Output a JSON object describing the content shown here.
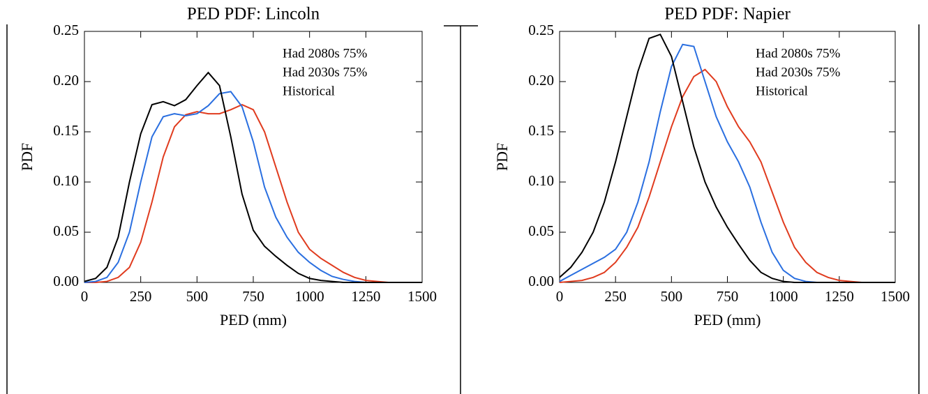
{
  "chart_data": [
    {
      "type": "line",
      "title": "PED PDF: Lincoln",
      "xlabel": "PED (mm)",
      "ylabel": "PDF",
      "x": [
        0,
        50,
        100,
        150,
        200,
        250,
        300,
        350,
        400,
        450,
        500,
        550,
        600,
        650,
        700,
        750,
        800,
        850,
        900,
        950,
        1000,
        1050,
        1100,
        1150,
        1200,
        1250,
        1300,
        1350,
        1400,
        1450,
        1500
      ],
      "xlim": [
        0,
        1500
      ],
      "xticks": [
        0,
        250,
        500,
        750,
        1000,
        1250,
        1500
      ],
      "ylim": [
        0,
        0.25
      ],
      "yticks": [
        {
          "value": 0,
          "label": "0.00"
        },
        {
          "value": 0.05,
          "label": "0.05"
        },
        {
          "value": 0.1,
          "label": "0.10"
        },
        {
          "value": 0.15,
          "label": "0.15"
        },
        {
          "value": 0.2,
          "label": "0.20"
        },
        {
          "value": 0.25,
          "label": "0.25"
        }
      ],
      "legend": "upper right",
      "series": [
        {
          "name": "Had 2080s 75%",
          "color": "#e03b1e",
          "values": [
            0,
            0,
            0.001,
            0.005,
            0.015,
            0.04,
            0.08,
            0.125,
            0.155,
            0.167,
            0.17,
            0.168,
            0.168,
            0.172,
            0.177,
            0.172,
            0.15,
            0.115,
            0.08,
            0.05,
            0.033,
            0.024,
            0.017,
            0.01,
            0.005,
            0.002,
            0.001,
            0,
            0,
            0,
            0
          ]
        },
        {
          "name": "Had 2030s 75%",
          "color": "#2a6fe0",
          "values": [
            0,
            0.001,
            0.005,
            0.02,
            0.05,
            0.1,
            0.145,
            0.165,
            0.168,
            0.166,
            0.168,
            0.176,
            0.188,
            0.19,
            0.175,
            0.14,
            0.095,
            0.065,
            0.045,
            0.03,
            0.02,
            0.012,
            0.006,
            0.003,
            0.001,
            0,
            0,
            0,
            0,
            0,
            0
          ]
        },
        {
          "name": "Historical",
          "color": "#000000",
          "values": [
            0.001,
            0.004,
            0.015,
            0.045,
            0.1,
            0.148,
            0.177,
            0.18,
            0.176,
            0.182,
            0.196,
            0.209,
            0.196,
            0.145,
            0.088,
            0.052,
            0.036,
            0.026,
            0.017,
            0.009,
            0.004,
            0.002,
            0.001,
            0,
            0,
            0,
            0,
            0,
            0,
            0,
            0
          ]
        }
      ]
    },
    {
      "type": "line",
      "title": "PED PDF: Napier",
      "xlabel": "PED (mm)",
      "ylabel": "PDF",
      "x": [
        0,
        50,
        100,
        150,
        200,
        250,
        300,
        350,
        400,
        450,
        500,
        550,
        600,
        650,
        700,
        750,
        800,
        850,
        900,
        950,
        1000,
        1050,
        1100,
        1150,
        1200,
        1250,
        1300,
        1350,
        1400,
        1450,
        1500
      ],
      "xlim": [
        0,
        1500
      ],
      "xticks": [
        0,
        250,
        500,
        750,
        1000,
        1250,
        1500
      ],
      "ylim": [
        0,
        0.25
      ],
      "yticks": [
        {
          "value": 0,
          "label": "0.00"
        },
        {
          "value": 0.05,
          "label": "0.05"
        },
        {
          "value": 0.1,
          "label": "0.10"
        },
        {
          "value": 0.15,
          "label": "0.15"
        },
        {
          "value": 0.2,
          "label": "0.20"
        },
        {
          "value": 0.25,
          "label": "0.25"
        }
      ],
      "legend": "upper right",
      "series": [
        {
          "name": "Had 2080s 75%",
          "color": "#e03b1e",
          "values": [
            0,
            0.001,
            0.002,
            0.005,
            0.01,
            0.02,
            0.035,
            0.055,
            0.085,
            0.12,
            0.155,
            0.185,
            0.205,
            0.212,
            0.2,
            0.175,
            0.155,
            0.14,
            0.12,
            0.09,
            0.06,
            0.035,
            0.02,
            0.01,
            0.005,
            0.002,
            0.001,
            0,
            0,
            0,
            0
          ]
        },
        {
          "name": "Had 2030s 75%",
          "color": "#2a6fe0",
          "values": [
            0.001,
            0.007,
            0.013,
            0.019,
            0.025,
            0.033,
            0.05,
            0.08,
            0.12,
            0.17,
            0.215,
            0.237,
            0.235,
            0.2,
            0.165,
            0.14,
            0.12,
            0.095,
            0.06,
            0.03,
            0.012,
            0.004,
            0.001,
            0,
            0,
            0,
            0,
            0,
            0,
            0,
            0
          ]
        },
        {
          "name": "Historical",
          "color": "#000000",
          "values": [
            0.005,
            0.015,
            0.03,
            0.05,
            0.08,
            0.12,
            0.165,
            0.21,
            0.243,
            0.247,
            0.225,
            0.18,
            0.135,
            0.1,
            0.075,
            0.055,
            0.038,
            0.022,
            0.01,
            0.004,
            0.001,
            0,
            0,
            0,
            0,
            0,
            0,
            0,
            0,
            0,
            0
          ]
        }
      ]
    }
  ]
}
